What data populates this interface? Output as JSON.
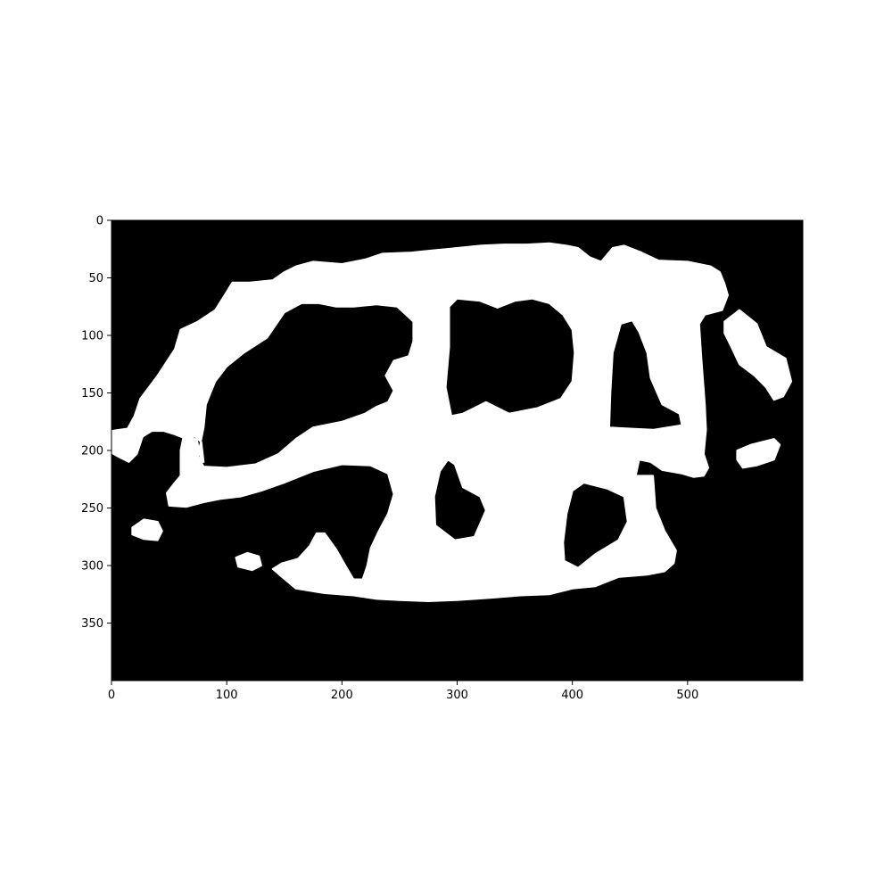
{
  "chart_data": {
    "type": "heatmap",
    "title": "",
    "xlabel": "",
    "ylabel": "",
    "xlim": [
      0,
      600
    ],
    "ylim": [
      400,
      0
    ],
    "x_ticks": [
      0,
      100,
      200,
      300,
      400,
      500
    ],
    "y_ticks": [
      0,
      50,
      100,
      150,
      200,
      250,
      300,
      350
    ],
    "colormap": {
      "background": "#000000",
      "foreground": "#ffffff"
    },
    "mask": {
      "outer": [
        [
          0,
          183
        ],
        [
          14,
          181
        ],
        [
          20,
          170
        ],
        [
          25,
          155
        ],
        [
          40,
          135
        ],
        [
          55,
          112
        ],
        [
          60,
          95
        ],
        [
          75,
          88
        ],
        [
          90,
          78
        ],
        [
          100,
          62
        ],
        [
          105,
          54
        ],
        [
          120,
          54
        ],
        [
          140,
          52
        ],
        [
          150,
          45
        ],
        [
          160,
          40
        ],
        [
          175,
          36
        ],
        [
          200,
          38
        ],
        [
          220,
          34
        ],
        [
          235,
          29
        ],
        [
          260,
          28
        ],
        [
          280,
          26
        ],
        [
          300,
          24
        ],
        [
          320,
          22
        ],
        [
          340,
          21
        ],
        [
          360,
          21
        ],
        [
          380,
          20
        ],
        [
          395,
          22
        ],
        [
          405,
          24
        ],
        [
          415,
          32
        ],
        [
          425,
          36
        ],
        [
          430,
          30
        ],
        [
          435,
          24
        ],
        [
          445,
          22
        ],
        [
          460,
          28
        ],
        [
          475,
          35
        ],
        [
          500,
          36
        ],
        [
          520,
          40
        ],
        [
          528,
          45
        ],
        [
          532,
          55
        ],
        [
          535,
          65
        ],
        [
          530,
          78
        ],
        [
          515,
          82
        ],
        [
          510,
          90
        ],
        [
          512,
          120
        ],
        [
          515,
          160
        ],
        [
          516,
          182
        ],
        [
          514,
          203
        ],
        [
          518,
          215
        ],
        [
          514,
          222
        ],
        [
          505,
          223
        ],
        [
          495,
          220
        ],
        [
          478,
          217
        ],
        [
          468,
          210
        ],
        [
          458,
          208
        ],
        [
          455,
          222
        ],
        [
          470,
          222
        ],
        [
          472,
          250
        ],
        [
          480,
          270
        ],
        [
          490,
          287
        ],
        [
          488,
          298
        ],
        [
          480,
          305
        ],
        [
          465,
          308
        ],
        [
          440,
          310
        ],
        [
          420,
          318
        ],
        [
          400,
          320
        ],
        [
          380,
          325
        ],
        [
          355,
          326
        ],
        [
          330,
          328
        ],
        [
          300,
          330
        ],
        [
          275,
          331
        ],
        [
          250,
          330
        ],
        [
          230,
          329
        ],
        [
          210,
          326
        ],
        [
          185,
          324
        ],
        [
          160,
          320
        ],
        [
          148,
          310
        ],
        [
          140,
          303
        ],
        [
          148,
          298
        ],
        [
          162,
          294
        ],
        [
          172,
          283
        ],
        [
          178,
          272
        ],
        [
          185,
          272
        ],
        [
          195,
          286
        ],
        [
          203,
          300
        ],
        [
          210,
          312
        ],
        [
          218,
          312
        ],
        [
          222,
          300
        ],
        [
          225,
          285
        ],
        [
          232,
          270
        ],
        [
          240,
          255
        ],
        [
          245,
          238
        ],
        [
          240,
          220
        ],
        [
          225,
          213
        ],
        [
          200,
          212
        ],
        [
          175,
          218
        ],
        [
          150,
          228
        ],
        [
          130,
          235
        ],
        [
          112,
          240
        ],
        [
          95,
          242
        ],
        [
          80,
          245
        ],
        [
          65,
          249
        ],
        [
          50,
          248
        ],
        [
          48,
          237
        ],
        [
          55,
          228
        ],
        [
          60,
          222
        ],
        [
          60,
          200
        ],
        [
          62,
          190
        ],
        [
          73,
          188
        ],
        [
          78,
          193
        ],
        [
          80,
          210
        ],
        [
          78,
          210
        ],
        [
          74,
          190
        ],
        [
          65,
          190
        ],
        [
          55,
          186
        ],
        [
          45,
          183
        ],
        [
          35,
          183
        ],
        [
          27,
          188
        ],
        [
          22,
          203
        ],
        [
          15,
          210
        ],
        [
          5,
          205
        ],
        [
          0,
          202
        ]
      ],
      "holes": [
        [
          [
            75,
            205
          ],
          [
            80,
            180
          ],
          [
            82,
            160
          ],
          [
            90,
            140
          ],
          [
            100,
            127
          ],
          [
            115,
            115
          ],
          [
            135,
            102
          ],
          [
            150,
            80
          ],
          [
            165,
            72
          ],
          [
            180,
            72
          ],
          [
            195,
            75
          ],
          [
            210,
            75
          ],
          [
            230,
            73
          ],
          [
            248,
            75
          ],
          [
            262,
            88
          ],
          [
            262,
            105
          ],
          [
            258,
            118
          ],
          [
            245,
            122
          ],
          [
            238,
            135
          ],
          [
            245,
            148
          ],
          [
            240,
            158
          ],
          [
            230,
            162
          ],
          [
            220,
            168
          ],
          [
            200,
            175
          ],
          [
            175,
            180
          ],
          [
            160,
            190
          ],
          [
            145,
            203
          ],
          [
            125,
            212
          ],
          [
            100,
            215
          ],
          [
            80,
            214
          ]
        ],
        [
          [
            295,
            170
          ],
          [
            290,
            145
          ],
          [
            293,
            110
          ],
          [
            293,
            75
          ],
          [
            300,
            68
          ],
          [
            320,
            70
          ],
          [
            335,
            76
          ],
          [
            350,
            70
          ],
          [
            365,
            68
          ],
          [
            380,
            72
          ],
          [
            392,
            82
          ],
          [
            400,
            95
          ],
          [
            402,
            115
          ],
          [
            400,
            140
          ],
          [
            390,
            155
          ],
          [
            370,
            163
          ],
          [
            345,
            168
          ],
          [
            325,
            158
          ],
          [
            315,
            163
          ],
          [
            305,
            168
          ]
        ],
        [
          [
            432,
            180
          ],
          [
            433,
            150
          ],
          [
            435,
            115
          ],
          [
            442,
            90
          ],
          [
            452,
            87
          ],
          [
            458,
            97
          ],
          [
            465,
            115
          ],
          [
            468,
            137
          ],
          [
            478,
            160
          ],
          [
            493,
            168
          ],
          [
            495,
            178
          ],
          [
            470,
            182
          ],
          [
            450,
            181
          ]
        ],
        [
          [
            281,
            265
          ],
          [
            280,
            240
          ],
          [
            285,
            218
          ],
          [
            292,
            208
          ],
          [
            298,
            212
          ],
          [
            305,
            232
          ],
          [
            320,
            240
          ],
          [
            325,
            252
          ],
          [
            315,
            275
          ],
          [
            298,
            278
          ]
        ],
        [
          [
            393,
            296
          ],
          [
            392,
            280
          ],
          [
            395,
            255
          ],
          [
            400,
            235
          ],
          [
            410,
            228
          ],
          [
            430,
            233
          ],
          [
            445,
            240
          ],
          [
            448,
            262
          ],
          [
            440,
            278
          ],
          [
            420,
            290
          ],
          [
            405,
            302
          ]
        ]
      ],
      "blobs": [
        [
          [
            0,
            0
          ]
        ],
        [
          [
            532,
            88
          ],
          [
            545,
            78
          ],
          [
            560,
            90
          ],
          [
            568,
            110
          ],
          [
            585,
            120
          ],
          [
            590,
            140
          ],
          [
            583,
            153
          ],
          [
            575,
            156
          ],
          [
            568,
            145
          ],
          [
            558,
            135
          ],
          [
            545,
            125
          ],
          [
            538,
            110
          ],
          [
            532,
            98
          ]
        ],
        [
          [
            543,
            200
          ],
          [
            555,
            195
          ],
          [
            575,
            190
          ],
          [
            580,
            195
          ],
          [
            575,
            208
          ],
          [
            560,
            213
          ],
          [
            548,
            215
          ],
          [
            543,
            208
          ]
        ],
        [
          [
            18,
            267
          ],
          [
            28,
            260
          ],
          [
            40,
            262
          ],
          [
            44,
            270
          ],
          [
            40,
            278
          ],
          [
            28,
            277
          ],
          [
            18,
            273
          ]
        ],
        [
          [
            108,
            293
          ],
          [
            118,
            289
          ],
          [
            128,
            292
          ],
          [
            130,
            300
          ],
          [
            122,
            304
          ],
          [
            110,
            301
          ]
        ]
      ]
    }
  }
}
